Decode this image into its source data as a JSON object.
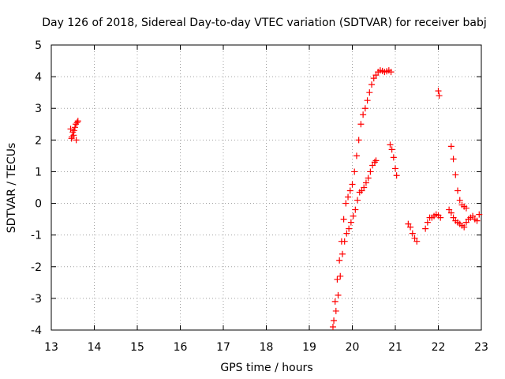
{
  "chart_data": {
    "type": "scatter",
    "title": "Day 126 of 2018, Sidereal Day-to-day VTEC variation (SDTVAR) for receiver babj",
    "xlabel": "GPS time / hours",
    "ylabel": "SDTVAR / TECUs",
    "xlim": [
      13,
      23
    ],
    "ylim": [
      -4,
      5
    ],
    "xticks": [
      "13",
      "14",
      "15",
      "16",
      "17",
      "18",
      "19",
      "20",
      "21",
      "22",
      "23"
    ],
    "yticks": [
      "5",
      "4",
      "3",
      "2",
      "1",
      "0",
      "-1",
      "-2",
      "-3",
      "-4"
    ],
    "grid": true,
    "marker": "+",
    "color": "#ff0000",
    "series": [
      {
        "name": "SDTVAR",
        "x": [
          13.45,
          13.48,
          13.5,
          13.52,
          13.55,
          13.57,
          13.6,
          13.62,
          13.47,
          13.53,
          13.58,
          19.55,
          19.6,
          19.65,
          19.7,
          19.75,
          19.8,
          19.85,
          19.9,
          19.95,
          20.0,
          20.05,
          20.1,
          20.15,
          20.2,
          20.25,
          20.3,
          20.35,
          20.4,
          20.45,
          20.5,
          20.55,
          20.6,
          20.65,
          20.7,
          20.75,
          20.8,
          20.85,
          20.9,
          19.57,
          19.62,
          19.67,
          19.72,
          19.77,
          19.82,
          19.87,
          19.92,
          19.97,
          20.02,
          20.07,
          20.12,
          20.17,
          20.22,
          20.27,
          20.32,
          20.37,
          20.42,
          20.47,
          20.52,
          20.55,
          20.88,
          20.92,
          20.96,
          21.0,
          21.03,
          21.3,
          21.35,
          21.4,
          21.45,
          21.5,
          21.7,
          21.75,
          21.8,
          21.85,
          21.9,
          21.95,
          22.0,
          22.05,
          22.0,
          22.02,
          22.25,
          22.3,
          22.35,
          22.4,
          22.45,
          22.5,
          22.55,
          22.6,
          22.65,
          22.7,
          22.75,
          22.8,
          22.85,
          22.9,
          22.95,
          22.3,
          22.35,
          22.4,
          22.45,
          22.5,
          22.55,
          22.6,
          22.65
        ],
        "y": [
          2.35,
          2.1,
          2.25,
          2.15,
          2.4,
          2.5,
          2.55,
          2.6,
          2.05,
          2.3,
          2.0,
          -3.9,
          -3.1,
          -2.4,
          -1.8,
          -1.2,
          -0.5,
          0.0,
          0.2,
          0.4,
          0.6,
          1.0,
          1.5,
          2.0,
          2.5,
          2.8,
          3.0,
          3.25,
          3.5,
          3.75,
          3.95,
          4.05,
          4.15,
          4.2,
          4.18,
          4.15,
          4.17,
          4.2,
          4.15,
          -3.7,
          -3.4,
          -2.9,
          -2.3,
          -1.6,
          -1.2,
          -0.95,
          -0.8,
          -0.6,
          -0.4,
          -0.2,
          0.1,
          0.35,
          0.4,
          0.5,
          0.65,
          0.8,
          1.0,
          1.2,
          1.3,
          1.35,
          1.85,
          1.7,
          1.45,
          1.1,
          0.88,
          -0.65,
          -0.75,
          -0.95,
          -1.1,
          -1.2,
          -0.8,
          -0.6,
          -0.45,
          -0.45,
          -0.4,
          -0.35,
          -0.38,
          -0.45,
          3.55,
          3.4,
          -0.2,
          -0.3,
          -0.45,
          -0.55,
          -0.6,
          -0.65,
          -0.7,
          -0.75,
          -0.6,
          -0.5,
          -0.45,
          -0.4,
          -0.5,
          -0.55,
          -0.35,
          1.8,
          1.4,
          0.9,
          0.4,
          0.1,
          -0.05,
          -0.1,
          -0.15
        ]
      }
    ]
  }
}
